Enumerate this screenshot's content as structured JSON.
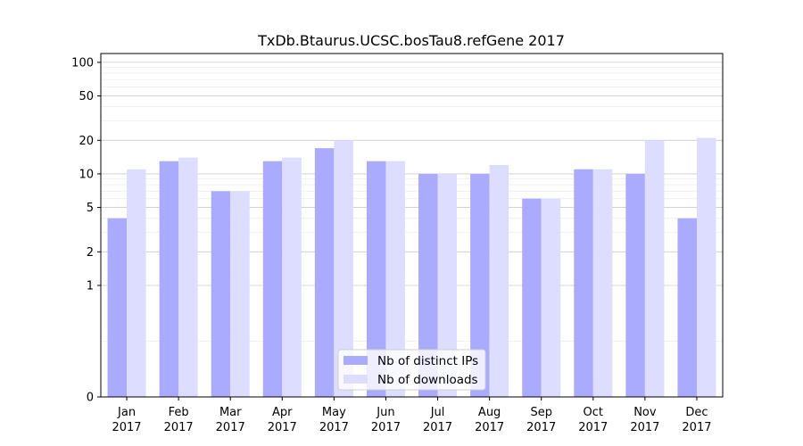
{
  "chart_data": {
    "type": "bar",
    "title": "TxDb.Btaurus.UCSC.bosTau8.refGene 2017",
    "xlabel": "",
    "ylabel": "",
    "y_scale": "symlog",
    "ylim": [
      0,
      120
    ],
    "yticks": [
      0,
      1,
      2,
      5,
      10,
      20,
      50,
      100
    ],
    "ytick_labels": [
      "0",
      "1",
      "2",
      "5",
      "10",
      "20",
      "50",
      "100"
    ],
    "categories": [
      "Jan",
      "Feb",
      "Mar",
      "Apr",
      "May",
      "Jun",
      "Jul",
      "Aug",
      "Sep",
      "Oct",
      "Nov",
      "Dec"
    ],
    "category_sublabel": "2017",
    "series": [
      {
        "name": "Nb of distinct IPs",
        "color": "#aaaaff",
        "values": [
          4,
          13,
          7,
          13,
          17,
          13,
          10,
          10,
          6,
          11,
          10,
          4
        ]
      },
      {
        "name": "Nb of downloads",
        "color": "#ddddff",
        "values": [
          11,
          14,
          7,
          14,
          20,
          13,
          10,
          12,
          6,
          11,
          20,
          21
        ]
      }
    ],
    "grid": true,
    "legend_position": "bottom-center"
  }
}
